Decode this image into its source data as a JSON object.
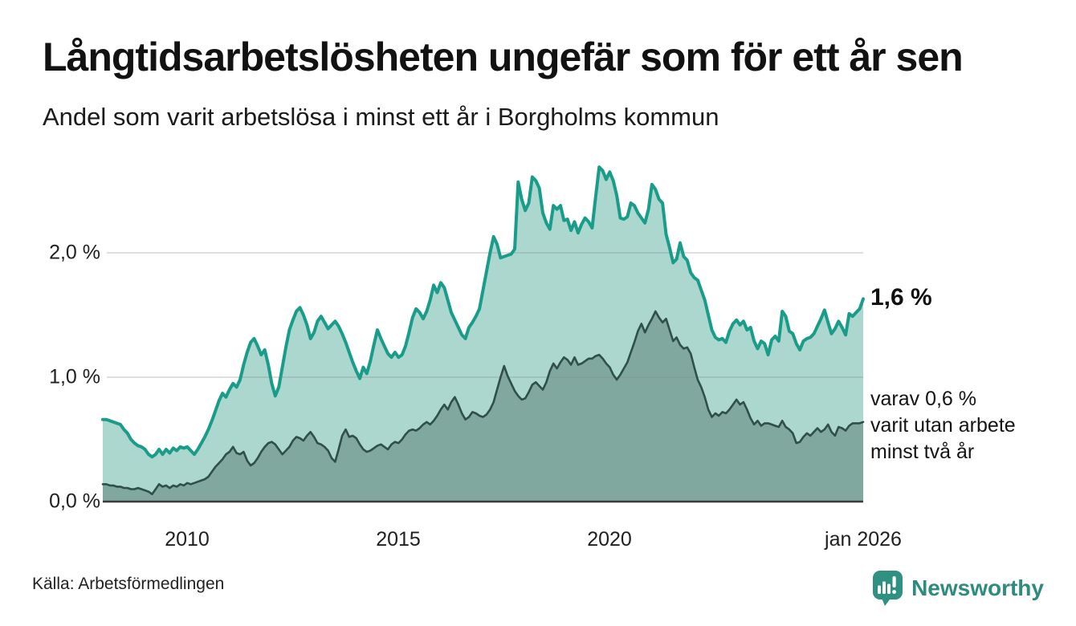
{
  "header": {
    "title": "Långtidsarbetslösheten ungefär som för ett år sen",
    "subtitle": "Andel som varit arbetslösa i minst ett år i Borgholms kommun"
  },
  "footer": {
    "source": "Källa: Arbetsförmedlingen",
    "logo_text": "Newsworthy"
  },
  "colors": {
    "teal_line": "#1a9c8b",
    "teal_fill": "#abd7cf",
    "dark_line": "#2f4f48",
    "dark_fill": "#80a89e",
    "grid": "#888888",
    "axis": "#3c3c3c",
    "logo_teal": "#2e9182",
    "logo_text": "#2e8b7d",
    "text": "#141414"
  },
  "chart_data": {
    "type": "area",
    "title": "Långtidsarbetslösheten ungefär som för ett år sen",
    "subtitle": "Andel som varit arbetslösa i minst ett år i Borgholms kommun",
    "unit": "%",
    "x_start": "2008-01",
    "x_end": "2026-01",
    "x_frequency": "monthly",
    "ylim": [
      0,
      2.75
    ],
    "grid": "horizontal",
    "legend_position": "right-annotations",
    "y_ticks": [
      {
        "label": "0,0 %",
        "value": 0.0
      },
      {
        "label": "1,0 %",
        "value": 1.0
      },
      {
        "label": "2,0 %",
        "value": 2.0
      }
    ],
    "x_ticks": [
      {
        "label": "2010",
        "year": 2010
      },
      {
        "label": "2015",
        "year": 2015
      },
      {
        "label": "2020",
        "year": 2020
      },
      {
        "label": "jan 2026",
        "year": 2026
      }
    ],
    "annotations": {
      "end_value_label": "1,6 %",
      "secondary_line1": "varav 0,6 %",
      "secondary_line2": "varit utan arbete",
      "secondary_line3": "minst två år"
    },
    "series": [
      {
        "name": "Arbetslösa minst ett år",
        "end_value": 1.6,
        "values": [
          0.66,
          0.66,
          0.65,
          0.64,
          0.63,
          0.62,
          0.58,
          0.55,
          0.5,
          0.47,
          0.45,
          0.44,
          0.42,
          0.38,
          0.36,
          0.38,
          0.42,
          0.38,
          0.42,
          0.39,
          0.43,
          0.41,
          0.44,
          0.43,
          0.44,
          0.41,
          0.38,
          0.42,
          0.47,
          0.52,
          0.58,
          0.65,
          0.73,
          0.81,
          0.87,
          0.84,
          0.9,
          0.95,
          0.92,
          0.98,
          1.1,
          1.2,
          1.28,
          1.31,
          1.25,
          1.18,
          1.22,
          1.1,
          0.95,
          0.85,
          0.92,
          1.08,
          1.24,
          1.38,
          1.46,
          1.53,
          1.56,
          1.5,
          1.42,
          1.31,
          1.36,
          1.45,
          1.49,
          1.44,
          1.39,
          1.42,
          1.45,
          1.41,
          1.35,
          1.28,
          1.2,
          1.12,
          1.05,
          0.99,
          1.08,
          1.03,
          1.13,
          1.26,
          1.38,
          1.31,
          1.25,
          1.19,
          1.16,
          1.2,
          1.16,
          1.18,
          1.25,
          1.36,
          1.48,
          1.55,
          1.52,
          1.47,
          1.53,
          1.62,
          1.74,
          1.68,
          1.76,
          1.72,
          1.62,
          1.52,
          1.46,
          1.4,
          1.34,
          1.31,
          1.4,
          1.44,
          1.49,
          1.55,
          1.7,
          1.85,
          2.0,
          2.13,
          2.07,
          1.96,
          1.97,
          1.98,
          1.99,
          2.03,
          2.57,
          2.43,
          2.34,
          2.4,
          2.61,
          2.58,
          2.52,
          2.32,
          2.24,
          2.19,
          2.38,
          2.35,
          2.38,
          2.26,
          2.27,
          2.18,
          2.25,
          2.16,
          2.23,
          2.28,
          2.25,
          2.2,
          2.45,
          2.69,
          2.66,
          2.59,
          2.65,
          2.58,
          2.46,
          2.28,
          2.27,
          2.29,
          2.4,
          2.38,
          2.32,
          2.28,
          2.24,
          2.35,
          2.55,
          2.51,
          2.43,
          2.4,
          2.15,
          2.04,
          1.92,
          1.95,
          2.08,
          1.97,
          1.94,
          1.84,
          1.8,
          1.78,
          1.7,
          1.62,
          1.5,
          1.38,
          1.32,
          1.3,
          1.31,
          1.28,
          1.37,
          1.43,
          1.46,
          1.42,
          1.45,
          1.38,
          1.4,
          1.29,
          1.23,
          1.29,
          1.27,
          1.18,
          1.3,
          1.33,
          1.29,
          1.53,
          1.49,
          1.37,
          1.35,
          1.27,
          1.22,
          1.29,
          1.31,
          1.32,
          1.35,
          1.41,
          1.47,
          1.54,
          1.44,
          1.35,
          1.39,
          1.45,
          1.4,
          1.34,
          1.51,
          1.49,
          1.52,
          1.55,
          1.63
        ]
      },
      {
        "name": "varav arbetslösa minst två år",
        "end_value": 0.6,
        "values": [
          0.14,
          0.14,
          0.13,
          0.13,
          0.12,
          0.12,
          0.11,
          0.11,
          0.1,
          0.1,
          0.11,
          0.1,
          0.09,
          0.08,
          0.06,
          0.1,
          0.14,
          0.12,
          0.13,
          0.11,
          0.13,
          0.12,
          0.14,
          0.13,
          0.15,
          0.14,
          0.15,
          0.16,
          0.17,
          0.18,
          0.2,
          0.24,
          0.28,
          0.31,
          0.34,
          0.38,
          0.4,
          0.44,
          0.39,
          0.38,
          0.4,
          0.33,
          0.29,
          0.31,
          0.35,
          0.4,
          0.44,
          0.47,
          0.48,
          0.46,
          0.42,
          0.38,
          0.41,
          0.44,
          0.49,
          0.52,
          0.51,
          0.49,
          0.53,
          0.56,
          0.52,
          0.47,
          0.46,
          0.44,
          0.41,
          0.35,
          0.32,
          0.42,
          0.53,
          0.58,
          0.52,
          0.53,
          0.51,
          0.46,
          0.42,
          0.4,
          0.41,
          0.43,
          0.45,
          0.46,
          0.44,
          0.42,
          0.46,
          0.48,
          0.47,
          0.5,
          0.54,
          0.57,
          0.58,
          0.57,
          0.59,
          0.62,
          0.64,
          0.62,
          0.65,
          0.69,
          0.74,
          0.78,
          0.74,
          0.8,
          0.84,
          0.78,
          0.71,
          0.66,
          0.68,
          0.72,
          0.71,
          0.69,
          0.68,
          0.7,
          0.74,
          0.8,
          0.9,
          1.0,
          1.09,
          1.01,
          0.95,
          0.89,
          0.85,
          0.82,
          0.83,
          0.88,
          0.94,
          0.96,
          0.93,
          0.9,
          0.96,
          1.05,
          1.11,
          1.07,
          1.12,
          1.16,
          1.14,
          1.1,
          1.16,
          1.1,
          1.11,
          1.13,
          1.15,
          1.15,
          1.17,
          1.18,
          1.15,
          1.11,
          1.08,
          1.02,
          0.98,
          1.02,
          1.07,
          1.12,
          1.2,
          1.28,
          1.37,
          1.43,
          1.36,
          1.42,
          1.47,
          1.53,
          1.48,
          1.44,
          1.47,
          1.38,
          1.29,
          1.32,
          1.26,
          1.23,
          1.24,
          1.19,
          1.08,
          0.98,
          0.92,
          0.84,
          0.74,
          0.68,
          0.71,
          0.69,
          0.72,
          0.71,
          0.74,
          0.78,
          0.82,
          0.78,
          0.8,
          0.74,
          0.67,
          0.62,
          0.65,
          0.61,
          0.63,
          0.63,
          0.62,
          0.61,
          0.6,
          0.65,
          0.6,
          0.58,
          0.55,
          0.47,
          0.48,
          0.52,
          0.55,
          0.53,
          0.56,
          0.59,
          0.56,
          0.58,
          0.62,
          0.56,
          0.53,
          0.6,
          0.59,
          0.57,
          0.61,
          0.63,
          0.63,
          0.63,
          0.64
        ]
      }
    ]
  }
}
